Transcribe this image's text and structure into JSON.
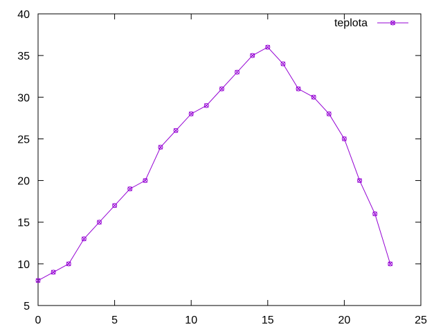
{
  "chart_data": {
    "type": "line",
    "title": "",
    "xlabel": "",
    "ylabel": "",
    "xlim": [
      0,
      25
    ],
    "ylim": [
      5,
      40
    ],
    "x_ticks": [
      0,
      5,
      10,
      15,
      20,
      25
    ],
    "y_ticks": [
      5,
      10,
      15,
      20,
      25,
      30,
      35,
      40
    ],
    "grid": false,
    "legend_position": "top-right",
    "series": [
      {
        "name": "teplota",
        "color": "#9400d3",
        "marker": "circle-cross",
        "x": [
          0,
          1,
          2,
          3,
          4,
          5,
          6,
          7,
          8,
          9,
          10,
          11,
          12,
          13,
          14,
          15,
          16,
          17,
          18,
          19,
          20,
          21,
          22,
          23
        ],
        "y": [
          8,
          9,
          10,
          13,
          15,
          17,
          19,
          20,
          24,
          26,
          28,
          29,
          31,
          33,
          35,
          36,
          34,
          31,
          30,
          28,
          25,
          20,
          16,
          10
        ]
      }
    ]
  }
}
